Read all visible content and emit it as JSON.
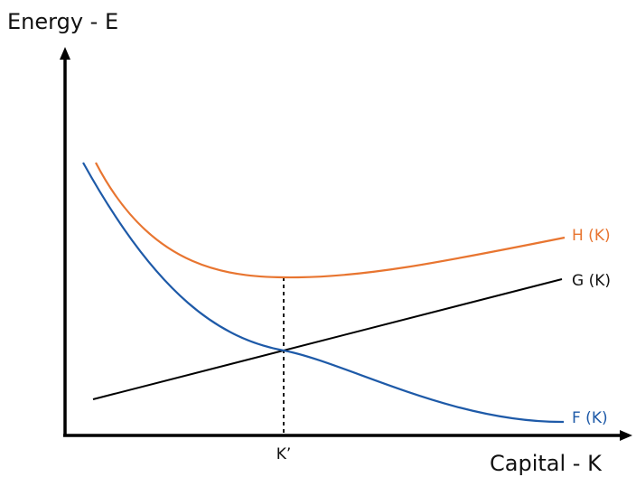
{
  "chart_data": {
    "type": "line",
    "title": "",
    "ylabel": "Energy - E",
    "xlabel": "Capital - K",
    "x_tick_labels": [
      "K’"
    ],
    "grid": false,
    "series": [
      {
        "name": "H (K)",
        "color": "#e87530"
      },
      {
        "name": "G (K)",
        "color": "#000000"
      },
      {
        "name": "F (K)",
        "color": "#1e5aa8"
      }
    ],
    "annotations": [
      "dashed vertical line from the minimum of H (K) down to K’, through the intersection of F (K) and G (K)"
    ]
  }
}
